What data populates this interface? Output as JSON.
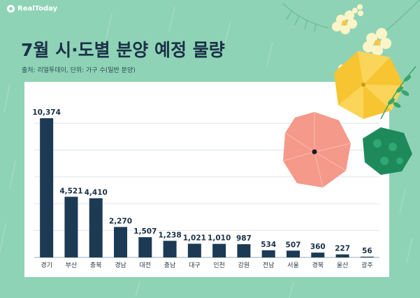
{
  "brand": {
    "name": "RealToday"
  },
  "header": {
    "title": "7월 시·도별 분양 예정 물량",
    "subtitle": "출처: 리얼투데이, 단위: 가구 수(일반 분양)"
  },
  "colors": {
    "bar": "#1c3a53",
    "background": "#8fd3b6",
    "title": "#1b3148",
    "grid": "#d5dde2"
  },
  "chart_data": {
    "type": "bar",
    "title": "7월 시·도별 분양 예정 물량",
    "categories": [
      "경기",
      "부산",
      "충북",
      "경남",
      "대전",
      "충남",
      "대구",
      "인천",
      "강원",
      "전남",
      "서울",
      "경북",
      "울산",
      "광주"
    ],
    "values": [
      10374,
      4521,
      4410,
      2270,
      1507,
      1238,
      1021,
      1010,
      987,
      534,
      507,
      360,
      227,
      56
    ],
    "value_labels": [
      "10,374",
      "4,521",
      "4,410",
      "2,270",
      "1,507",
      "1,238",
      "1,021",
      "1,010",
      "987",
      "534",
      "507",
      "360",
      "227",
      "56"
    ],
    "xlabel": "",
    "ylabel": "",
    "ylim": [
      0,
      11000
    ],
    "grid": true,
    "legend": "none"
  }
}
